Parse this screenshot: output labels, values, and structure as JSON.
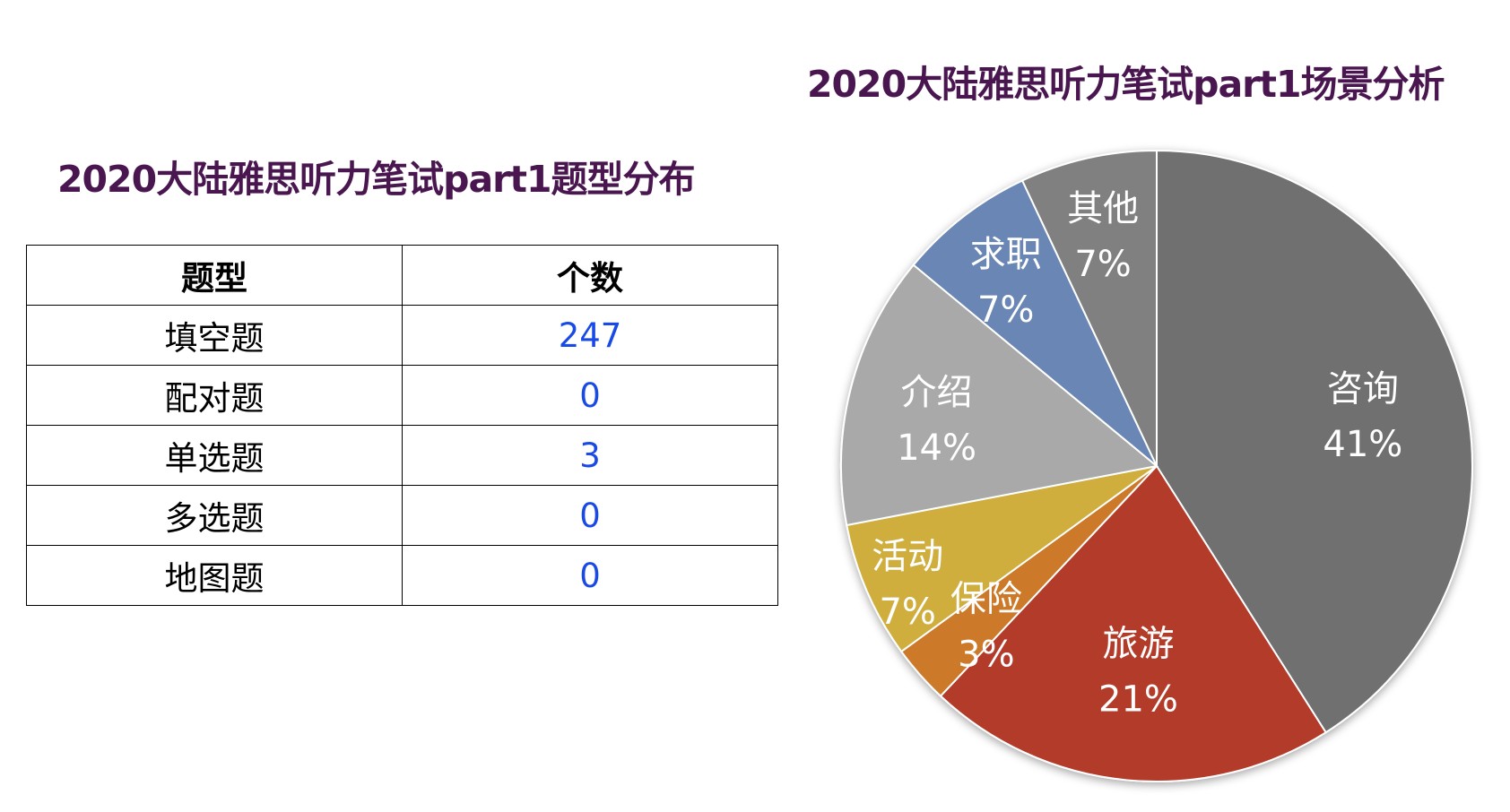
{
  "table_title": "2020大陆雅思听力笔试part1题型分布",
  "table": {
    "headers": [
      "题型",
      "个数"
    ],
    "rows": [
      {
        "type": "填空题",
        "count": "247"
      },
      {
        "type": "配对题",
        "count": "0"
      },
      {
        "type": "单选题",
        "count": "3"
      },
      {
        "type": "多选题",
        "count": "0"
      },
      {
        "type": "地图题",
        "count": "0"
      }
    ]
  },
  "chart_data": {
    "type": "pie",
    "title": "2020大陆雅思听力笔试part1场景分析",
    "slices": [
      {
        "label": "咨询",
        "value": 41,
        "pct": "41%",
        "color": "#707070"
      },
      {
        "label": "旅游",
        "value": 21,
        "pct": "21%",
        "color": "#b33a2a"
      },
      {
        "label": "保险",
        "value": 3,
        "pct": "3%",
        "color": "#cc7a2c"
      },
      {
        "label": "活动",
        "value": 7,
        "pct": "7%",
        "color": "#cfae3e"
      },
      {
        "label": "介绍",
        "value": 14,
        "pct": "14%",
        "color": "#a9a9a9"
      },
      {
        "label": "求职",
        "value": 7,
        "pct": "7%",
        "color": "#6a86b4"
      },
      {
        "label": "其他",
        "value": 7,
        "pct": "7%",
        "color": "#808080"
      }
    ]
  }
}
